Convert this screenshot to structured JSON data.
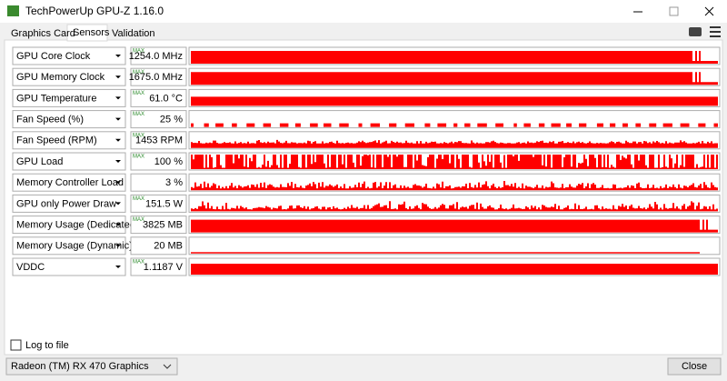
{
  "window": {
    "title": "TechPowerUp GPU-Z 1.16.0"
  },
  "tabs": [
    "Graphics Card",
    "Sensors",
    "Validation"
  ],
  "sensors": [
    {
      "name": "GPU Core Clock",
      "max_label": "MAX",
      "value": "1254.0 MHz"
    },
    {
      "name": "GPU Memory Clock",
      "max_label": "MAX",
      "value": "1675.0 MHz"
    },
    {
      "name": "GPU Temperature",
      "max_label": "MAX",
      "value": "61.0 °C"
    },
    {
      "name": "Fan Speed (%)",
      "max_label": "MAX",
      "value": "25 %"
    },
    {
      "name": "Fan Speed (RPM)",
      "max_label": "MAX",
      "value": "1453 RPM"
    },
    {
      "name": "GPU Load",
      "max_label": "MAX",
      "value": "100 %"
    },
    {
      "name": "Memory Controller Load",
      "value": "3 %"
    },
    {
      "name": "GPU only Power Draw",
      "max_label": "MAX",
      "value": "151.5 W"
    },
    {
      "name": "Memory Usage (Dedicated)",
      "max_label": "MAX",
      "value": "3825 MB"
    },
    {
      "name": "Memory Usage (Dynamic)",
      "value": "20 MB"
    },
    {
      "name": "VDDC",
      "max_label": "MAX",
      "value": "1.1187 V"
    }
  ],
  "log_to_file": "Log to file",
  "gpu_select": "Radeon (TM) RX 470 Graphics",
  "close_button": "Close"
}
